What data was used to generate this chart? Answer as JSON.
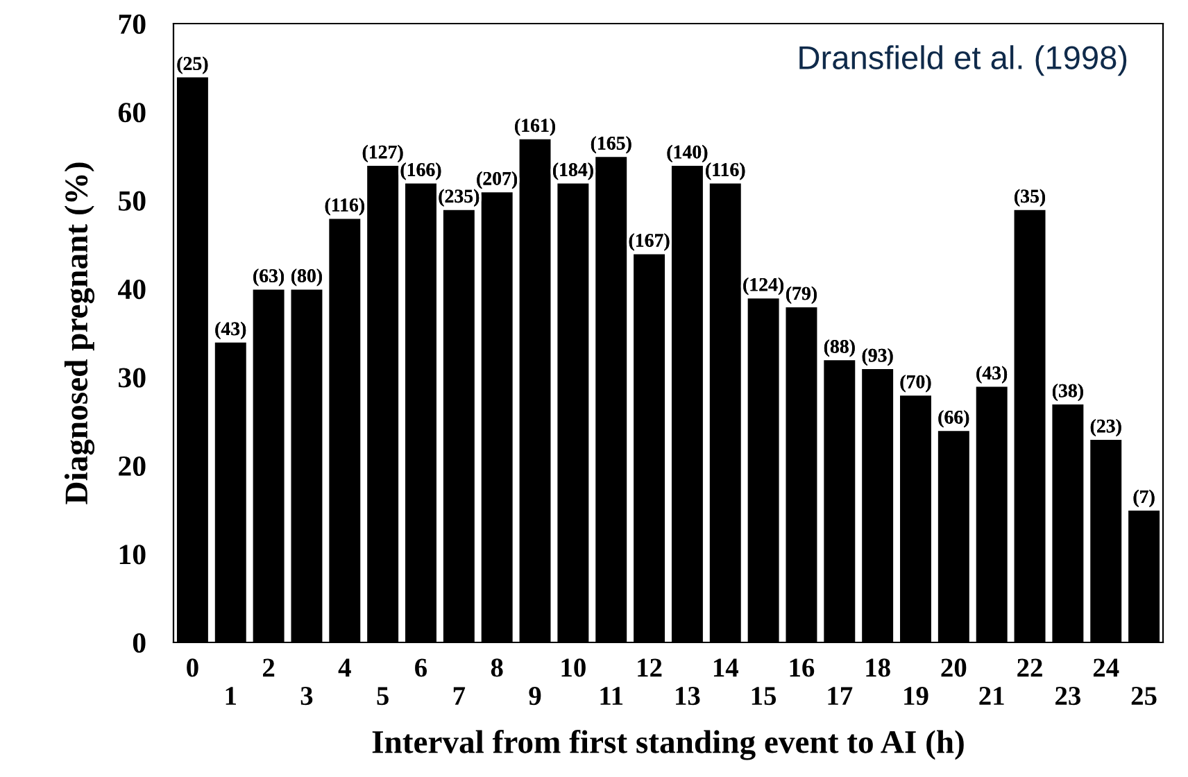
{
  "chart_data": {
    "type": "bar",
    "xlabel": "Interval from first standing event to AI (h)",
    "ylabel": "Diagnosed pregnant (%)",
    "categories": [
      "0",
      "1",
      "2",
      "3",
      "4",
      "5",
      "6",
      "7",
      "8",
      "9",
      "10",
      "11",
      "12",
      "13",
      "14",
      "15",
      "16",
      "17",
      "18",
      "19",
      "20",
      "21",
      "22",
      "23",
      "24",
      "25"
    ],
    "values": [
      64,
      34,
      40,
      40,
      48,
      54,
      52,
      49,
      51,
      57,
      52,
      55,
      44,
      54,
      52,
      39,
      38,
      32,
      31,
      28,
      24,
      29,
      49,
      27,
      23,
      15
    ],
    "color": "#000000",
    "ylim": [
      0,
      70
    ],
    "yticks": [
      0,
      10,
      20,
      30,
      40,
      50,
      60,
      70
    ],
    "annotations": [
      "Dransfield et al. (1998)",
      {
        "text": "(25)",
        "x": "0",
        "y": 64
      },
      {
        "text": "(43)",
        "x": "1",
        "y": 34
      },
      {
        "text": "(63)",
        "x": "2",
        "y": 40
      },
      {
        "text": "(80)",
        "x": "3",
        "y": 40
      },
      {
        "text": "(116)",
        "x": "4",
        "y": 48
      },
      {
        "text": "(127)",
        "x": "5",
        "y": 54
      },
      {
        "text": "(166)",
        "x": "6",
        "y": 52
      },
      {
        "text": "(235)",
        "x": "7",
        "y": 49
      },
      {
        "text": "(207)",
        "x": "8",
        "y": 51
      },
      {
        "text": "(161)",
        "x": "9",
        "y": 57
      },
      {
        "text": "(184)",
        "x": "10",
        "y": 52
      },
      {
        "text": "(165)",
        "x": "11",
        "y": 55
      },
      {
        "text": "(167)",
        "x": "12",
        "y": 44
      },
      {
        "text": "(140)",
        "x": "13",
        "y": 54
      },
      {
        "text": "(116)",
        "x": "14",
        "y": 52
      },
      {
        "text": "(124)",
        "x": "15",
        "y": 39
      },
      {
        "text": "(79)",
        "x": "16",
        "y": 38
      },
      {
        "text": "(88)",
        "x": "17",
        "y": 32
      },
      {
        "text": "(93)",
        "x": "18",
        "y": 31
      },
      {
        "text": "(70)",
        "x": "19",
        "y": 28
      },
      {
        "text": "(66)",
        "x": "20",
        "y": 24
      },
      {
        "text": "(43)",
        "x": "21",
        "y": 29
      },
      {
        "text": "(35)",
        "x": "22",
        "y": 49
      },
      {
        "text": "(38)",
        "x": "23",
        "y": 27
      },
      {
        "text": "(23)",
        "x": "24",
        "y": 23
      },
      {
        "text": "(7)",
        "x": "25",
        "y": 15
      }
    ],
    "grid": false,
    "legend": false
  }
}
